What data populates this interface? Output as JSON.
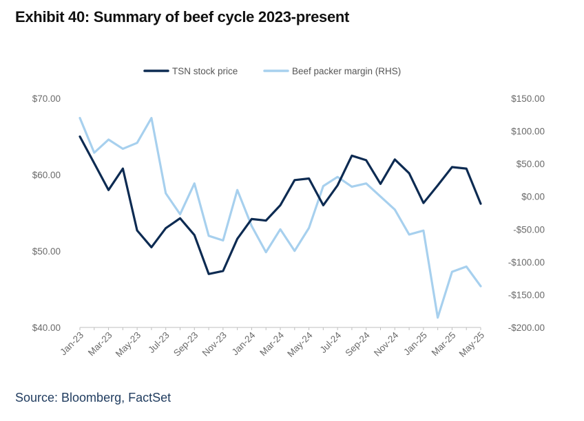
{
  "title": "Exhibit 40: Summary of beef cycle 2023-present",
  "source": "Source: Bloomberg, FactSet",
  "colors": {
    "tsn": "#0d2b52",
    "margin": "#a7d0ee",
    "axis": "#bfbfbf",
    "text": "#6a6a6a"
  },
  "chart_data": {
    "type": "line",
    "title": "Exhibit 40: Summary of beef cycle 2023-present",
    "legend_position": "top-center",
    "x_tick_labels": [
      "Jan-23",
      "Mar-23",
      "May-23",
      "Jul-23",
      "Sep-23",
      "Nov-23",
      "Jan-24",
      "Mar-24",
      "May-24",
      "Jul-24",
      "Sep-24",
      "Nov-24",
      "Jan-25",
      "Mar-25",
      "May-25"
    ],
    "y_left": {
      "min": 40,
      "max": 70,
      "ticks": [
        "$70.00",
        "$60.00",
        "$50.00",
        "$40.00"
      ],
      "tick_values": [
        70,
        60,
        50,
        40
      ]
    },
    "y_right": {
      "min": -200,
      "max": 150,
      "ticks": [
        "$150.00",
        "$100.00",
        "$50.00",
        "$0.00",
        "-$50.00",
        "-$100.00",
        "-$150.00",
        "-$200.00"
      ],
      "tick_values": [
        150,
        100,
        50,
        0,
        -50,
        -100,
        -150,
        -200
      ]
    },
    "series": [
      {
        "name": "TSN stock price",
        "axis": "left",
        "values": [
          65.0,
          61.5,
          58.0,
          60.8,
          52.7,
          50.5,
          53.0,
          54.3,
          52.1,
          47.0,
          47.4,
          51.6,
          54.2,
          54.0,
          56.0,
          59.3,
          59.5,
          56.0,
          58.6,
          62.5,
          61.9,
          58.8,
          62.0,
          60.2,
          56.3,
          58.6,
          61.0,
          60.8,
          56.2
        ]
      },
      {
        "name": "Beef packer margin (RHS)",
        "axis": "right",
        "values": [
          120,
          67,
          87,
          73,
          82,
          120,
          5,
          -27,
          20,
          -60,
          -67,
          10,
          -45,
          -85,
          -50,
          -83,
          -48,
          16,
          30,
          15,
          20,
          0,
          -20,
          -58,
          -52,
          -185,
          -115,
          -107,
          -137
        ]
      }
    ]
  }
}
